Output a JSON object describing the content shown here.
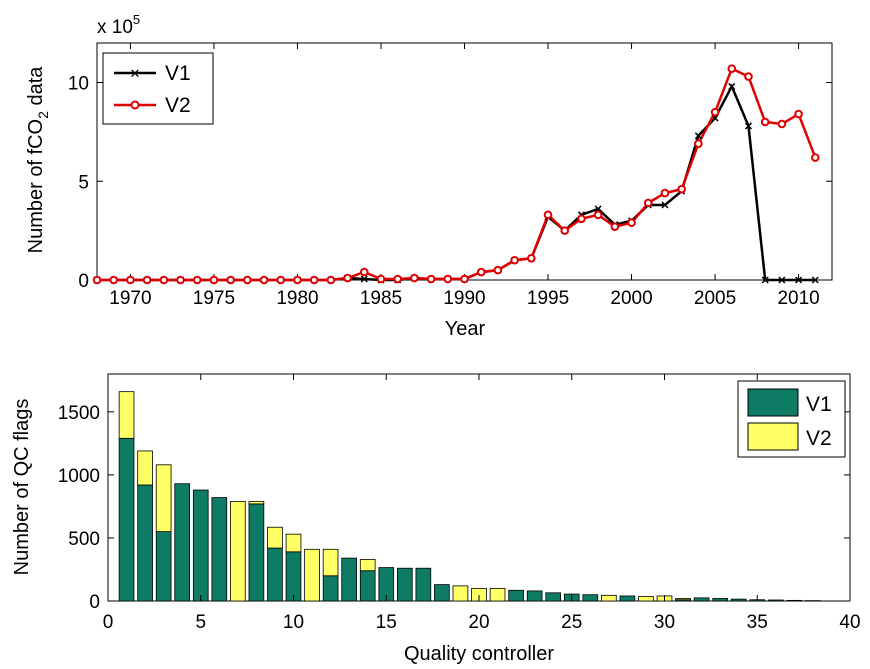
{
  "colors": {
    "v1_line": "#000000",
    "v2_line": "#e00000",
    "v1_bar": "#0e7b65",
    "v2_bar": "#ffff66"
  },
  "chart_data": [
    {
      "type": "line",
      "xlabel": "Year",
      "ylabel_main": "Number of fCO",
      "ylabel_sub": "2",
      "ylabel_tail": " data",
      "exponent_base": "x 10",
      "exponent_power": "5",
      "xlim": [
        1968,
        2012
      ],
      "ylim": [
        0,
        12
      ],
      "xticks": [
        1970,
        1975,
        1980,
        1985,
        1990,
        1995,
        2000,
        2005,
        2010
      ],
      "yticks": [
        0,
        5,
        10
      ],
      "legend_position": "top-left",
      "series": [
        {
          "name": "V1",
          "x": [
            1968,
            1969,
            1970,
            1971,
            1972,
            1973,
            1974,
            1975,
            1976,
            1977,
            1978,
            1979,
            1980,
            1981,
            1982,
            1983,
            1984,
            1985,
            1986,
            1987,
            1988,
            1989,
            1990,
            1991,
            1992,
            1993,
            1994,
            1995,
            1996,
            1997,
            1998,
            1999,
            2000,
            2001,
            2002,
            2003,
            2004,
            2005,
            2006,
            2007,
            2008,
            2009,
            2010,
            2011
          ],
          "y": [
            0,
            0,
            0,
            0,
            0,
            0,
            0,
            0,
            0,
            0,
            0,
            0,
            0,
            0,
            0,
            0.1,
            0.05,
            0,
            0,
            0.1,
            0.05,
            0.05,
            0.05,
            0.4,
            0.5,
            1.0,
            1.1,
            3.2,
            2.5,
            3.3,
            3.6,
            2.8,
            3.0,
            3.8,
            3.8,
            4.5,
            7.3,
            8.2,
            9.8,
            7.8,
            0,
            0,
            0,
            0
          ],
          "marker": "x"
        },
        {
          "name": "V2",
          "x": [
            1968,
            1969,
            1970,
            1971,
            1972,
            1973,
            1974,
            1975,
            1976,
            1977,
            1978,
            1979,
            1980,
            1981,
            1982,
            1983,
            1984,
            1985,
            1986,
            1987,
            1988,
            1989,
            1990,
            1991,
            1992,
            1993,
            1994,
            1995,
            1996,
            1997,
            1998,
            1999,
            2000,
            2001,
            2002,
            2003,
            2004,
            2005,
            2006,
            2007,
            2008,
            2009,
            2010,
            2011
          ],
          "y": [
            0,
            0,
            0,
            0,
            0,
            0,
            0,
            0,
            0,
            0,
            0,
            0,
            0,
            0,
            0,
            0.1,
            0.4,
            0.05,
            0.05,
            0.1,
            0.05,
            0.05,
            0.05,
            0.4,
            0.5,
            1.0,
            1.1,
            3.3,
            2.5,
            3.1,
            3.3,
            2.7,
            2.9,
            3.9,
            4.4,
            4.6,
            6.9,
            8.5,
            10.7,
            10.3,
            8.0,
            7.9,
            8.4,
            6.2
          ],
          "marker": "o"
        }
      ]
    },
    {
      "type": "bar",
      "stacked": true,
      "xlabel": "Quality controller",
      "ylabel": "Number of QC flags",
      "xlim": [
        0,
        40
      ],
      "ylim": [
        0,
        1800
      ],
      "xticks": [
        0,
        5,
        10,
        15,
        20,
        25,
        30,
        35,
        40
      ],
      "yticks": [
        0,
        500,
        1000,
        1500
      ],
      "legend_position": "top-right",
      "categories": [
        1,
        2,
        3,
        4,
        5,
        6,
        7,
        8,
        9,
        10,
        11,
        12,
        13,
        14,
        15,
        16,
        17,
        18,
        19,
        20,
        21,
        22,
        23,
        24,
        25,
        26,
        27,
        28,
        29,
        30,
        31,
        32,
        33,
        34,
        35,
        36,
        37,
        38
      ],
      "series": [
        {
          "name": "V1",
          "values": [
            1290,
            920,
            550,
            930,
            880,
            820,
            0,
            770,
            420,
            390,
            0,
            200,
            340,
            240,
            265,
            260,
            260,
            130,
            0,
            0,
            0,
            85,
            80,
            65,
            55,
            50,
            0,
            40,
            0,
            0,
            10,
            25,
            20,
            15,
            10,
            8,
            5,
            3
          ]
        },
        {
          "name": "V2",
          "values": [
            370,
            270,
            530,
            0,
            0,
            0,
            790,
            20,
            165,
            140,
            410,
            210,
            0,
            90,
            0,
            0,
            0,
            0,
            120,
            100,
            100,
            0,
            0,
            0,
            0,
            0,
            45,
            0,
            35,
            40,
            10,
            0,
            0,
            0,
            0,
            0,
            0,
            0
          ]
        }
      ]
    }
  ]
}
